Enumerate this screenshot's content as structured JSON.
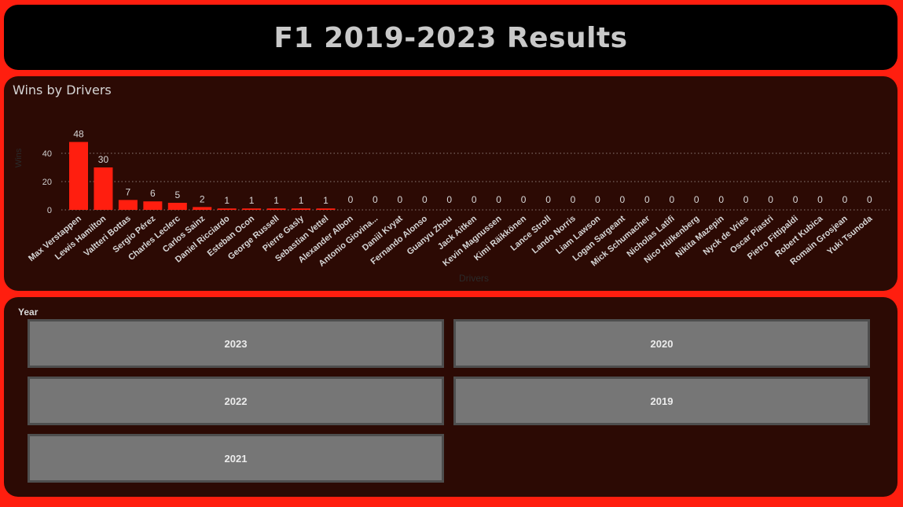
{
  "title": "F1 2019-2023 Results",
  "chart": {
    "visual_title": "Wins by Drivers",
    "bar_color": "#ff1e0f"
  },
  "chart_data": {
    "type": "bar",
    "title": "Wins by Drivers",
    "xlabel": "Drivers",
    "ylabel": "Wins",
    "ylim": [
      0,
      50
    ],
    "yticks": [
      0,
      20,
      40
    ],
    "grid": true,
    "data_labels": true,
    "categories": [
      "Max Verstappen",
      "Lewis Hamilton",
      "Valtteri Bottas",
      "Sergio Pérez",
      "Charles Leclerc",
      "Carlos Sainz",
      "Daniel Ricciardo",
      "Esteban Ocon",
      "George Russell",
      "Pierre Gasly",
      "Sebastian Vettel",
      "Alexander Albon",
      "Antonio Giovina...",
      "Daniil Kvyat",
      "Fernando Alonso",
      "Guanyu Zhou",
      "Jack Aitken",
      "Kevin Magnussen",
      "Kimi Räikkönen",
      "Lance Stroll",
      "Lando Norris",
      "Liam Lawson",
      "Logan Sargeant",
      "Mick Schumacher",
      "Nicholas Latifi",
      "Nico Hülkenberg",
      "Nikita Mazepin",
      "Nyck de Vries",
      "Oscar Piastri",
      "Pietro Fittipaldi",
      "Robert Kubica",
      "Romain Grosjean",
      "Yuki Tsunoda"
    ],
    "values": [
      48,
      30,
      7,
      6,
      5,
      2,
      1,
      1,
      1,
      1,
      1,
      0,
      0,
      0,
      0,
      0,
      0,
      0,
      0,
      0,
      0,
      0,
      0,
      0,
      0,
      0,
      0,
      0,
      0,
      0,
      0,
      0,
      0
    ]
  },
  "slicer": {
    "header": "Year",
    "items": [
      {
        "label": "2023",
        "selected": false
      },
      {
        "label": "2020",
        "selected": false
      },
      {
        "label": "2022",
        "selected": false
      },
      {
        "label": "2019",
        "selected": false
      },
      {
        "label": "2021",
        "selected": false
      }
    ]
  }
}
